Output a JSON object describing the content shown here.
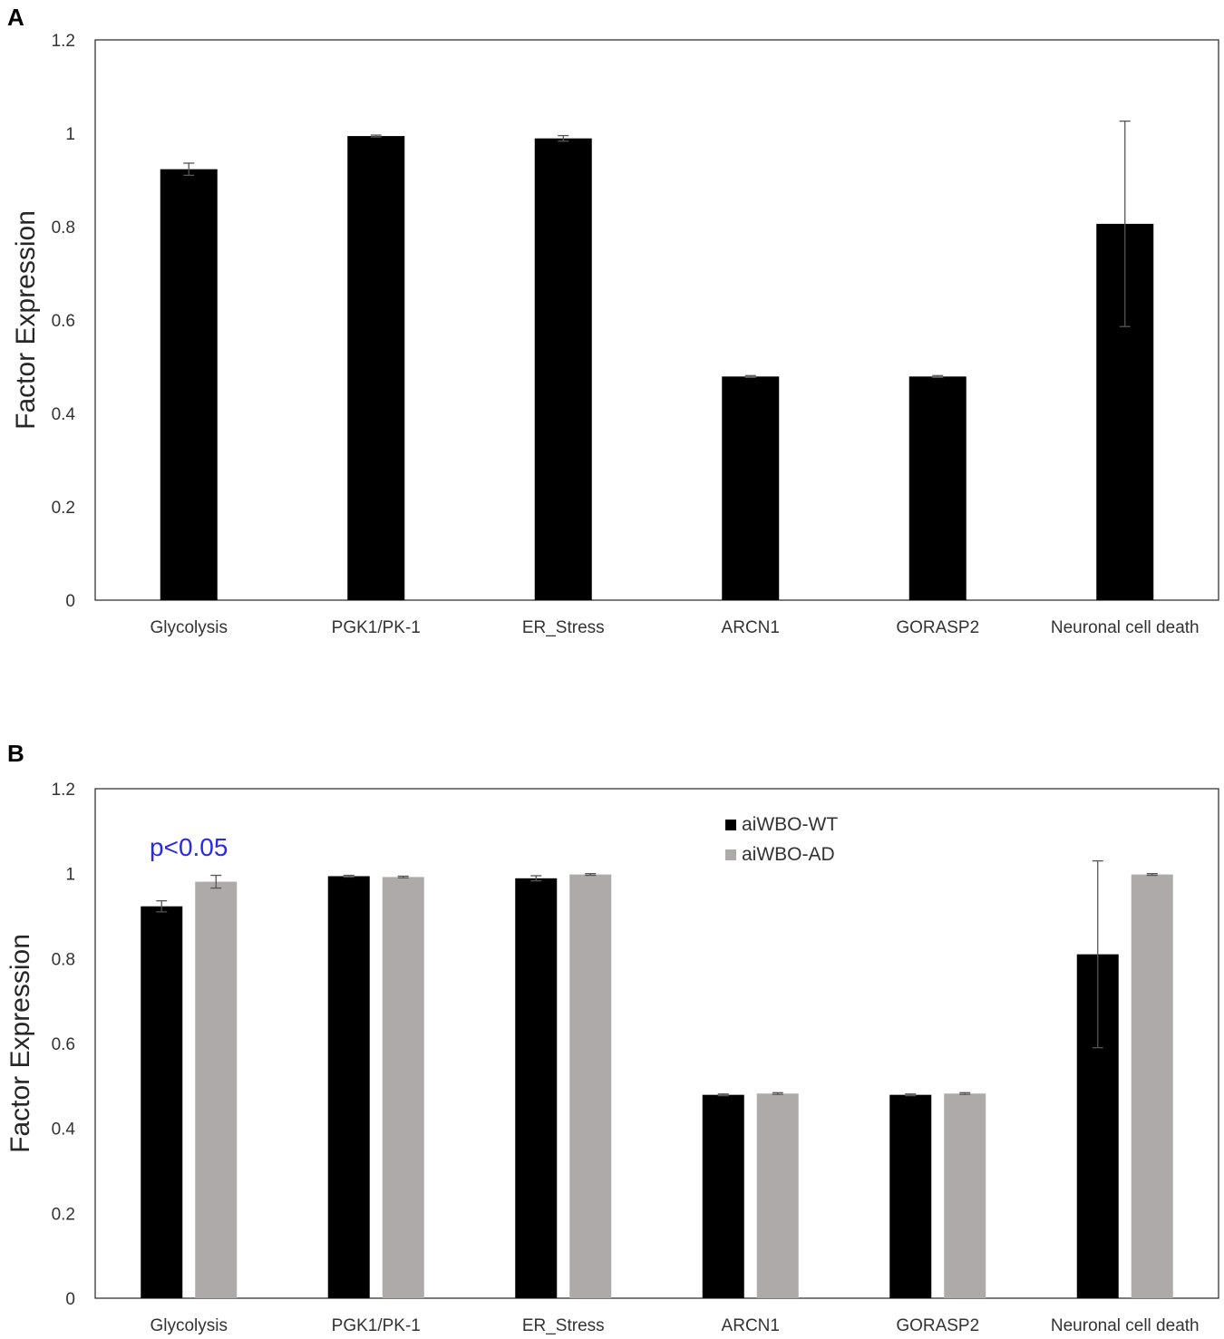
{
  "chart_data": [
    {
      "panel_label": "A",
      "type": "bar",
      "ylabel": "Factor Expression",
      "ylim": [
        0,
        1.2
      ],
      "yticks": [
        "0",
        "0.2",
        "0.4",
        "0.6",
        "0.8",
        "1",
        "1.2"
      ],
      "categories": [
        "Glycolysis",
        "PGK1/PK-1",
        "ER_Stress",
        "ARCN1",
        "GORASP2",
        "Neuronal cell death"
      ],
      "series": [
        {
          "name": "aiWBO-WT",
          "color": "#000000",
          "values": [
            0.923,
            0.994,
            0.989,
            0.479,
            0.479,
            0.806
          ],
          "errors": [
            0.013,
            0.002,
            0.006,
            0.002,
            0.002,
            0.22
          ]
        }
      ]
    },
    {
      "panel_label": "B",
      "type": "bar",
      "ylabel": "Factor Expression",
      "ylim": [
        0,
        1.2
      ],
      "yticks": [
        "0",
        "0.2",
        "0.4",
        "0.6",
        "0.8",
        "1",
        "1.2"
      ],
      "categories": [
        "Glycolysis",
        "PGK1/PK-1",
        "ER_Stress",
        "ARCN1",
        "GORASP2",
        "Neuronal cell death"
      ],
      "legend": {
        "position": "top-center"
      },
      "annotation": {
        "text": "p<0.05",
        "category": "Glycolysis",
        "color": "#2a2ae6"
      },
      "series": [
        {
          "name": "aiWBO-WT",
          "color": "#000000",
          "values": [
            0.923,
            0.994,
            0.989,
            0.479,
            0.479,
            0.81
          ],
          "errors": [
            0.013,
            0.002,
            0.006,
            0.002,
            0.002,
            0.22
          ]
        },
        {
          "name": "aiWBO-AD",
          "color": "#aeaaaa",
          "values": [
            0.981,
            0.992,
            0.998,
            0.482,
            0.482,
            0.998
          ],
          "errors": [
            0.015,
            0.002,
            0.002,
            0.002,
            0.002,
            0.002
          ]
        }
      ]
    }
  ]
}
